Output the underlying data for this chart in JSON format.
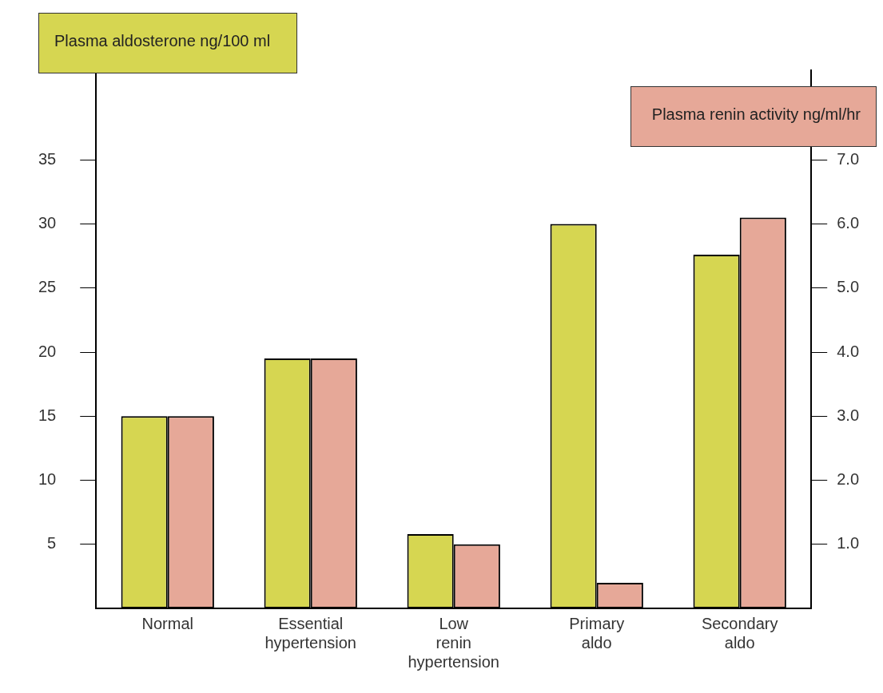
{
  "chart_data": {
    "type": "bar",
    "ylabel": "Plasma aldosterone ng/100 ml",
    "y2label": "Plasma renin activity ng/ml/hr",
    "categories": [
      "Normal",
      "Essential hypertension",
      "Low renin hypertension",
      "Primary aldo",
      "Secondary aldo"
    ],
    "series": [
      {
        "color": "#d6d651",
        "values": [
          15,
          19.5,
          5.8,
          30,
          27.6
        ]
      },
      {
        "color": "#e6a898",
        "axis": "y2",
        "values": [
          3.0,
          3.9,
          1.0,
          0.4,
          6.1
        ]
      }
    ],
    "ylim": [
      0,
      42
    ],
    "yticks": [
      5,
      10,
      15,
      20,
      25,
      30,
      35
    ],
    "y2lim": [
      0,
      8.4
    ],
    "y2ticks": [
      {
        "value": 1,
        "label": "1.0"
      },
      {
        "value": 2,
        "label": "2.0"
      },
      {
        "value": 3,
        "label": "3.0"
      },
      {
        "value": 4,
        "label": "4.0"
      },
      {
        "value": 5,
        "label": "5.0"
      },
      {
        "value": 6,
        "label": "6.0"
      },
      {
        "value": 7,
        "label": "7.0"
      }
    ],
    "grid": false,
    "legend": false
  }
}
